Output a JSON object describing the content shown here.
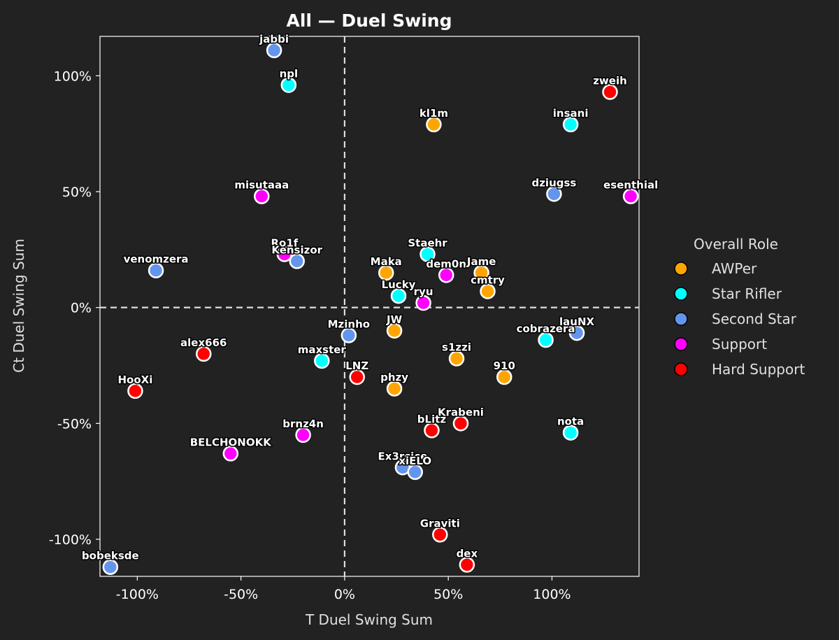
{
  "chart_data": {
    "type": "scatter",
    "title": "All — Duel Swing",
    "xlabel": "T Duel Swing Sum",
    "ylabel": "Ct Duel Swing Sum",
    "xlim": [
      -118,
      142
    ],
    "ylim": [
      -116,
      117
    ],
    "x_ticks": [
      {
        "value": -100,
        "label": "-100%"
      },
      {
        "value": -50,
        "label": "-50%"
      },
      {
        "value": 0,
        "label": "0%"
      },
      {
        "value": 50,
        "label": "50%"
      },
      {
        "value": 100,
        "label": "100%"
      }
    ],
    "y_ticks": [
      {
        "value": 100,
        "label": "100%"
      },
      {
        "value": 50,
        "label": "50%"
      },
      {
        "value": 0,
        "label": "0%"
      },
      {
        "value": -50,
        "label": "-50%"
      },
      {
        "value": -100,
        "label": "-100%"
      }
    ],
    "reference_lines": {
      "x": 0,
      "y": 0,
      "style": "dashed"
    },
    "legend": {
      "title": "Overall Role",
      "position": "right",
      "entries": [
        {
          "name": "AWPer",
          "color": "#FFA500"
        },
        {
          "name": "Star Rifler",
          "color": "#00FFFF"
        },
        {
          "name": "Second Star",
          "color": "#6495ED"
        },
        {
          "name": "Support",
          "color": "#FF00FF"
        },
        {
          "name": "Hard Support",
          "color": "#FF0000"
        }
      ]
    },
    "points": [
      {
        "name": "jabbi",
        "x": -34,
        "y": 111,
        "role": "Second Star"
      },
      {
        "name": "npl",
        "x": -27,
        "y": 96,
        "role": "Star Rifler"
      },
      {
        "name": "zweih",
        "x": 128,
        "y": 93,
        "role": "Hard Support"
      },
      {
        "name": "kl1m",
        "x": 43,
        "y": 79,
        "role": "AWPer"
      },
      {
        "name": "insani",
        "x": 109,
        "y": 79,
        "role": "Star Rifler"
      },
      {
        "name": "misutaaa",
        "x": -40,
        "y": 48,
        "role": "Support"
      },
      {
        "name": "dziugss",
        "x": 101,
        "y": 49,
        "role": "Second Star"
      },
      {
        "name": "esenthial",
        "x": 138,
        "y": 48,
        "role": "Support"
      },
      {
        "name": "Ro1f",
        "x": -29,
        "y": 23,
        "role": "Support"
      },
      {
        "name": "Kensizor",
        "x": -23,
        "y": 20,
        "role": "Second Star"
      },
      {
        "name": "venomzera",
        "x": -91,
        "y": 16,
        "role": "Second Star"
      },
      {
        "name": "Staehr",
        "x": 40,
        "y": 23,
        "role": "Star Rifler"
      },
      {
        "name": "Maka",
        "x": 20,
        "y": 15,
        "role": "AWPer"
      },
      {
        "name": "dem0n",
        "x": 49,
        "y": 14,
        "role": "Support"
      },
      {
        "name": "Jame",
        "x": 66,
        "y": 15,
        "role": "AWPer"
      },
      {
        "name": "cmtry",
        "x": 69,
        "y": 7,
        "role": "AWPer"
      },
      {
        "name": "Lucky",
        "x": 26,
        "y": 5,
        "role": "Star Rifler"
      },
      {
        "name": "ryu",
        "x": 38,
        "y": 2,
        "role": "Support"
      },
      {
        "name": "Mzinho",
        "x": 2,
        "y": -12,
        "role": "Second Star"
      },
      {
        "name": "JW",
        "x": 24,
        "y": -10,
        "role": "AWPer"
      },
      {
        "name": "cobrazera",
        "x": 97,
        "y": -14,
        "role": "Star Rifler"
      },
      {
        "name": "lauNX",
        "x": 112,
        "y": -11,
        "role": "Second Star"
      },
      {
        "name": "alex666",
        "x": -68,
        "y": -20,
        "role": "Hard Support"
      },
      {
        "name": "maxster",
        "x": -11,
        "y": -23,
        "role": "Star Rifler"
      },
      {
        "name": "s1zzi",
        "x": 54,
        "y": -22,
        "role": "AWPer"
      },
      {
        "name": "LNZ",
        "x": 6,
        "y": -30,
        "role": "Hard Support"
      },
      {
        "name": "910",
        "x": 77,
        "y": -30,
        "role": "AWPer"
      },
      {
        "name": "phzy",
        "x": 24,
        "y": -35,
        "role": "AWPer"
      },
      {
        "name": "HooXi",
        "x": -101,
        "y": -36,
        "role": "Hard Support"
      },
      {
        "name": "Krabeni",
        "x": 56,
        "y": -50,
        "role": "Hard Support"
      },
      {
        "name": "bLitz",
        "x": 42,
        "y": -53,
        "role": "Hard Support"
      },
      {
        "name": "nota",
        "x": 109,
        "y": -54,
        "role": "Star Rifler"
      },
      {
        "name": "brnz4n",
        "x": -20,
        "y": -55,
        "role": "Support"
      },
      {
        "name": "BELCHONOKK",
        "x": -55,
        "y": -63,
        "role": "Support"
      },
      {
        "name": "Ex3rcice",
        "x": 28,
        "y": -69,
        "role": "Second Star"
      },
      {
        "name": "xiELO",
        "x": 34,
        "y": -71,
        "role": "Second Star"
      },
      {
        "name": "Graviti",
        "x": 46,
        "y": -98,
        "role": "Hard Support"
      },
      {
        "name": "dex",
        "x": 59,
        "y": -111,
        "role": "Hard Support"
      },
      {
        "name": "bobeksde",
        "x": -113,
        "y": -112,
        "role": "Second Star"
      }
    ]
  }
}
